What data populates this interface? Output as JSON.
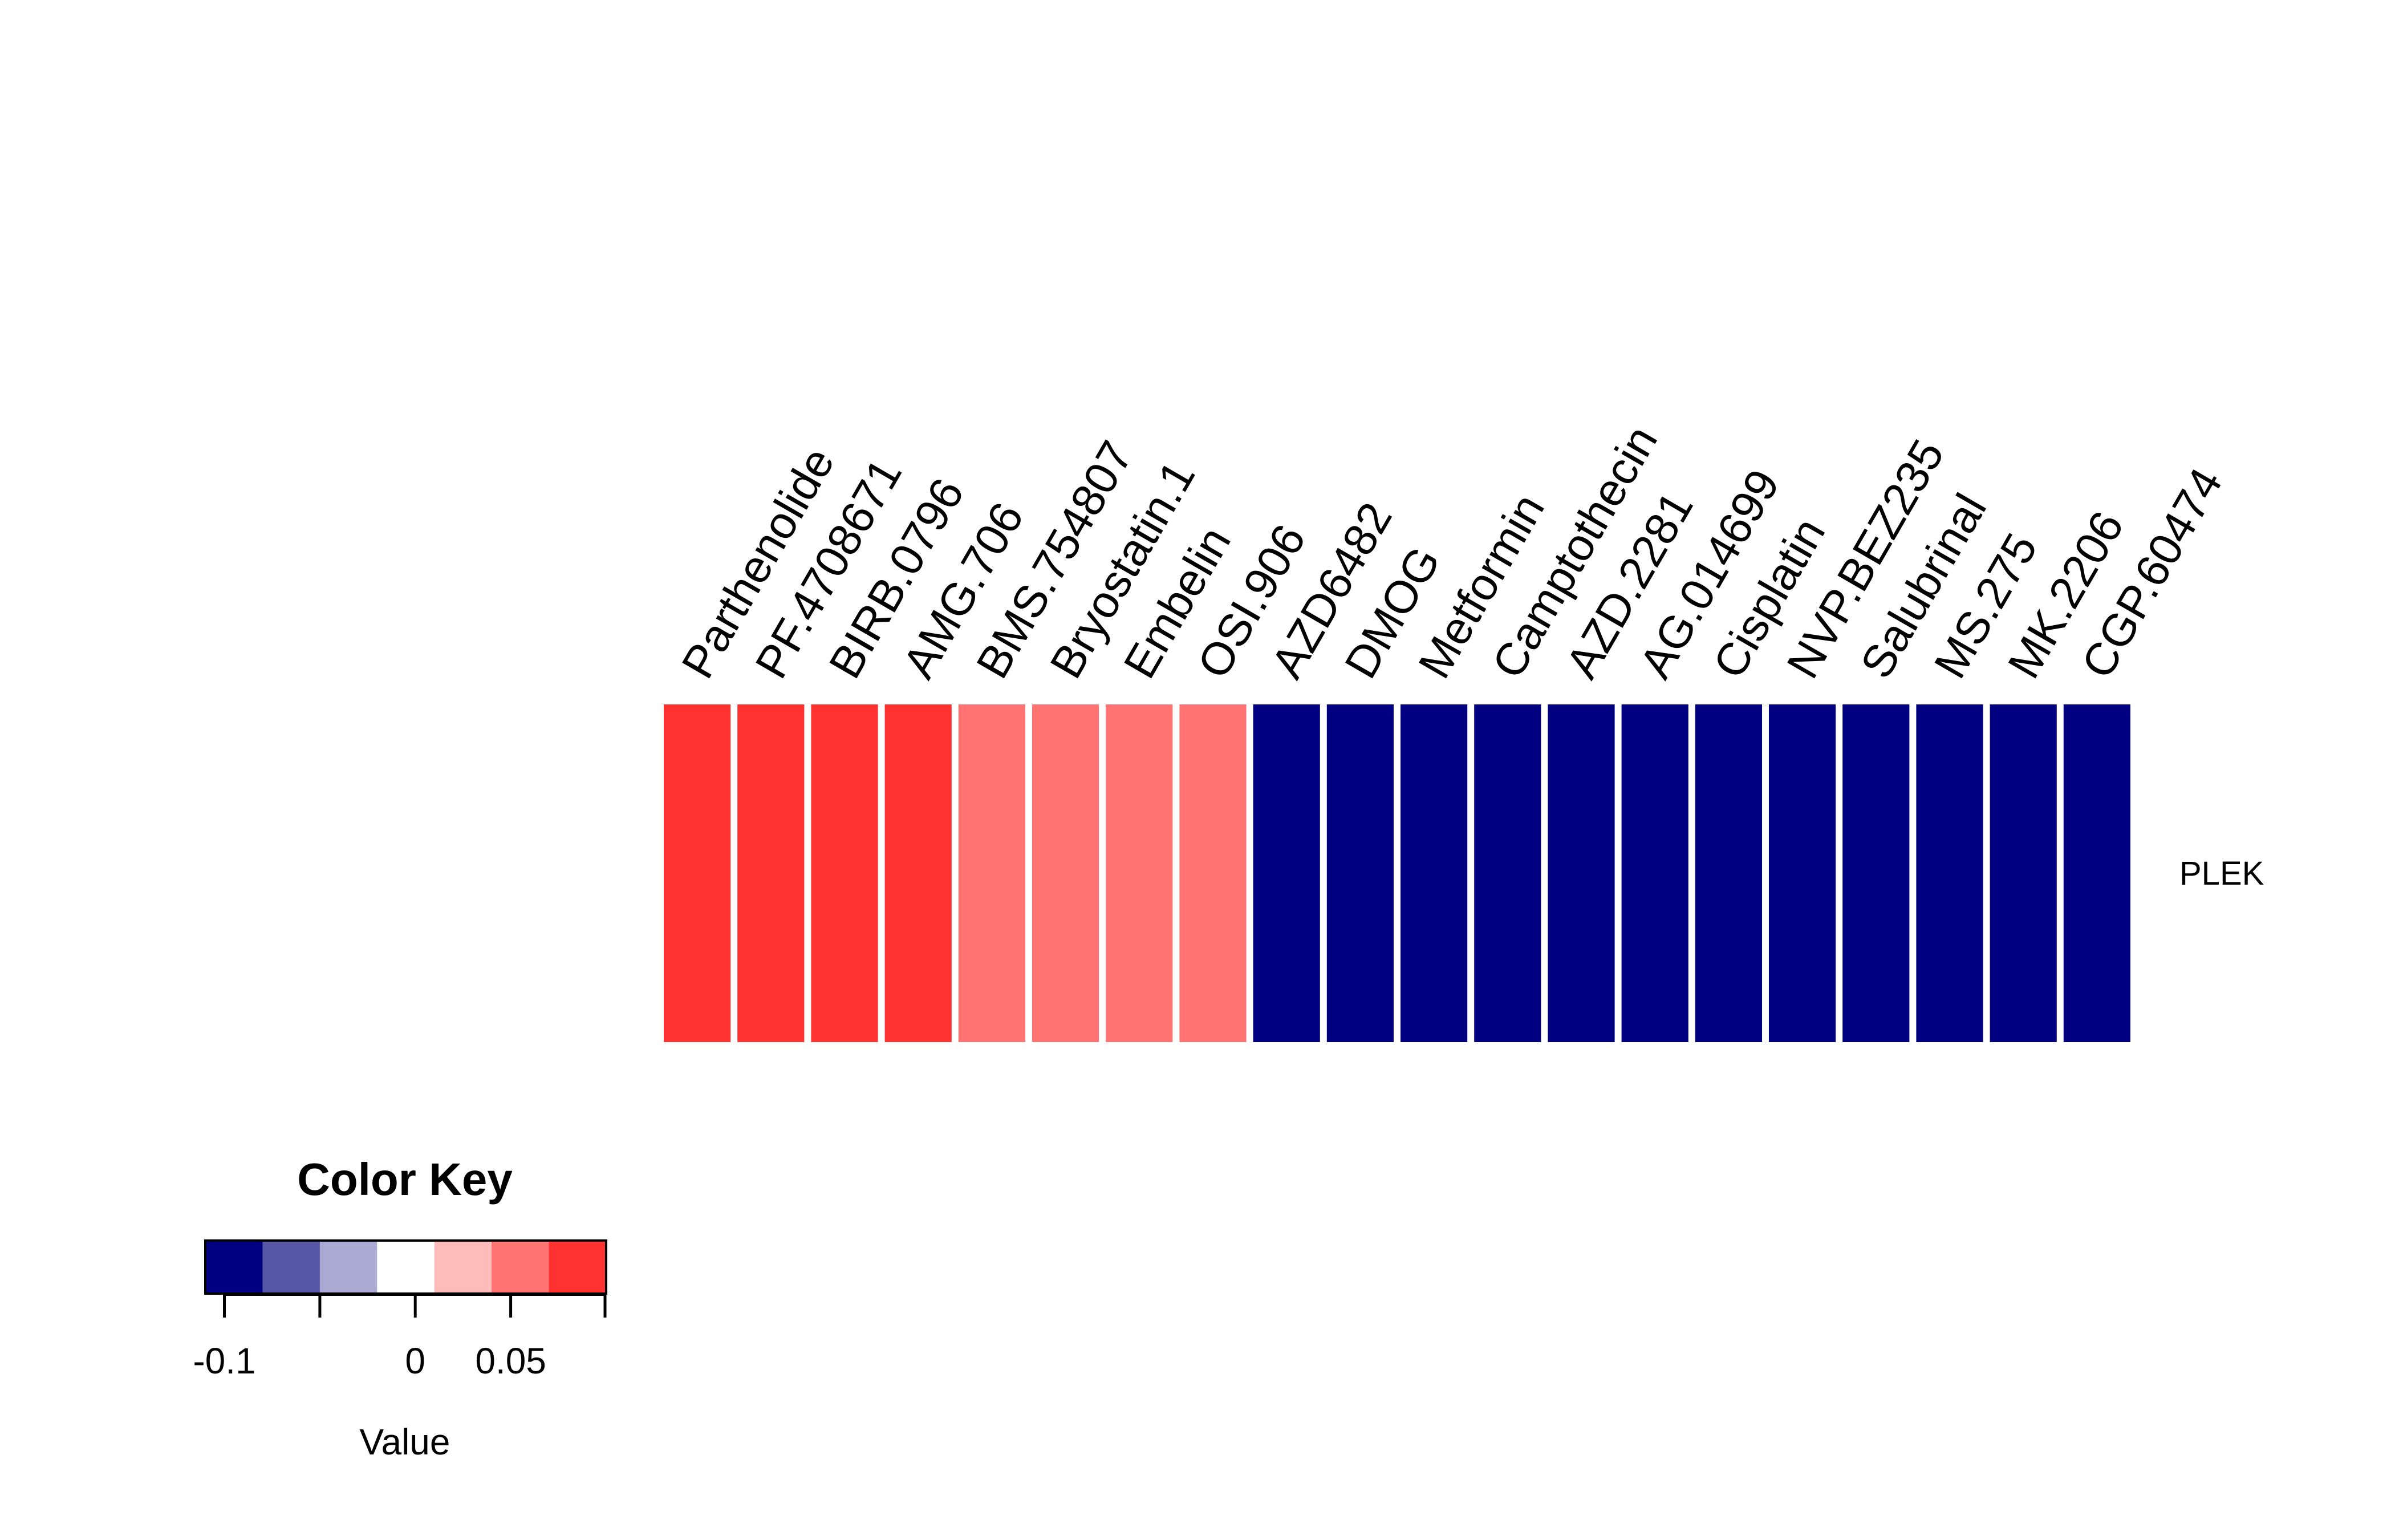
{
  "chart_data": {
    "type": "heatmap",
    "rows": [
      "PLEK"
    ],
    "columns": [
      "Parthenolide",
      "PF.4708671",
      "BIRB.0796",
      "AMG.706",
      "BMS.754807",
      "Bryostatin.1",
      "Embelin",
      "OSI.906",
      "AZD6482",
      "DMOG",
      "Metformin",
      "Camptothecin",
      "AZD.2281",
      "AG.014699",
      "Cisplatin",
      "NVP.BEZ235",
      "Salubrinal",
      "MS.275",
      "MK.2206",
      "CGP.60474"
    ],
    "values": [
      [
        0.085,
        0.085,
        0.085,
        0.085,
        0.06,
        0.06,
        0.06,
        0.06,
        -0.085,
        -0.085,
        -0.085,
        -0.11,
        -0.11,
        -0.11,
        -0.11,
        -0.11,
        -0.11,
        -0.11,
        -0.11,
        -0.11
      ]
    ],
    "color_key": {
      "title": "Color Key",
      "xlabel": "Value",
      "tick_labels": [
        {
          "value": -0.1,
          "label": "-0.1"
        },
        {
          "value": 0,
          "label": "0"
        },
        {
          "value": 0.05,
          "label": "0.05"
        }
      ],
      "range": [
        -0.11,
        0.1
      ],
      "bins": [
        {
          "from": -0.11,
          "to": -0.08,
          "color": "#000080"
        },
        {
          "from": -0.08,
          "to": -0.05,
          "color": "#5757A8"
        },
        {
          "from": -0.05,
          "to": -0.02,
          "color": "#AAAAD4"
        },
        {
          "from": -0.02,
          "to": 0.01,
          "color": "#FFFFFF"
        },
        {
          "from": 0.01,
          "to": 0.04,
          "color": "#FFBABA"
        },
        {
          "from": 0.04,
          "to": 0.07,
          "color": "#FF7373"
        },
        {
          "from": 0.07,
          "to": 0.1,
          "color": "#FF3232"
        }
      ]
    }
  }
}
